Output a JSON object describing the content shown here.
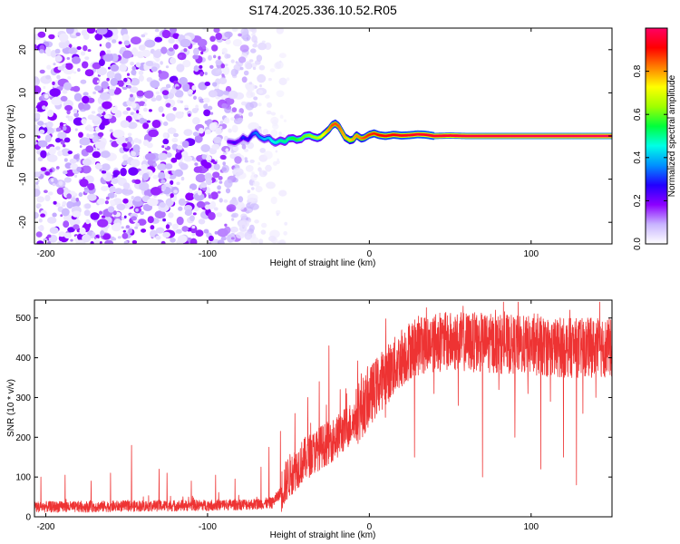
{
  "chart_data": [
    {
      "type": "heatmap",
      "title": "S174.2025.336.10.52.R05",
      "xlabel": "Height of straight line (km)",
      "ylabel": "Frequency (Hz)",
      "xlim": [
        -207,
        150
      ],
      "ylim": [
        -25,
        25
      ],
      "xticks": [
        -200,
        -100,
        0,
        100
      ],
      "yticks": [
        -20,
        -10,
        0,
        10,
        20
      ],
      "colorbar": {
        "label": "Normalized spectral amplitude",
        "range": [
          0,
          1
        ],
        "ticks": [
          0.0,
          0.2,
          0.4,
          0.6,
          0.8
        ],
        "colormap": [
          "#ffffff",
          "#c8b4ff",
          "#8c00ff",
          "#2200ff",
          "#0090ff",
          "#00ffe6",
          "#00ff3c",
          "#a0ff00",
          "#ffff00",
          "#ff8000",
          "#ff0000",
          "#ff0064"
        ]
      },
      "noise_region_x": [
        -207,
        -60
      ],
      "signal_track": {
        "x": [
          -87,
          -83,
          -80,
          -78,
          -75,
          -72,
          -70,
          -68,
          -65,
          -62,
          -60,
          -58,
          -55,
          -52,
          -50,
          -47,
          -45,
          -42,
          -40,
          -37,
          -35,
          -32,
          -30,
          -27,
          -25,
          -23,
          -21,
          -19,
          -17,
          -15,
          -12,
          -10,
          -8,
          -5,
          -3,
          0,
          3,
          6,
          10,
          15,
          20,
          25,
          30,
          35,
          40,
          50,
          60,
          80,
          100,
          120,
          150
        ],
        "y": [
          -1.3,
          -1.6,
          -1.0,
          -0.3,
          -0.9,
          0.5,
          0.8,
          -0.2,
          -0.8,
          -0.4,
          -1.2,
          -1.6,
          -1.0,
          -1.4,
          -0.6,
          -0.5,
          -0.9,
          -0.7,
          0.0,
          0.2,
          -0.2,
          -0.5,
          -0.2,
          0.8,
          1.5,
          2.5,
          2.9,
          2.3,
          1.0,
          -0.3,
          -1.0,
          -0.8,
          0.2,
          -0.6,
          -0.4,
          0.3,
          0.6,
          0.2,
          0.0,
          0.3,
          0.1,
          0.2,
          0.4,
          0.3,
          0.0,
          0.1,
          0.0,
          0.0,
          0.0,
          0.0,
          0.0
        ],
        "amplitude": [
          0.2,
          0.25,
          0.2,
          0.3,
          0.25,
          0.3,
          0.35,
          0.35,
          0.4,
          0.4,
          0.45,
          0.45,
          0.5,
          0.5,
          0.5,
          0.55,
          0.55,
          0.6,
          0.6,
          0.62,
          0.65,
          0.65,
          0.7,
          0.75,
          0.8,
          0.85,
          0.85,
          0.85,
          0.8,
          0.78,
          0.75,
          0.78,
          0.8,
          0.82,
          0.85,
          0.88,
          0.88,
          0.9,
          0.92,
          0.92,
          0.93,
          0.94,
          0.95,
          0.95,
          0.95,
          0.96,
          0.97,
          0.97,
          0.98,
          0.98,
          0.99
        ]
      }
    },
    {
      "type": "line",
      "xlabel": "Height of straight line (km)",
      "ylabel": "SNR (10 * v/v)",
      "xlim": [
        -207,
        150
      ],
      "ylim": [
        0,
        545
      ],
      "xticks": [
        -200,
        -100,
        0,
        100
      ],
      "yticks": [
        0,
        100,
        200,
        300,
        400,
        500
      ],
      "color": "#ee3333",
      "grid": false,
      "series": [
        {
          "name": "SNR",
          "x": [
            -207,
            -180,
            -150,
            -120,
            -90,
            -70,
            -60,
            -55,
            -50,
            -40,
            -30,
            -20,
            -15,
            -10,
            -5,
            0,
            5,
            10,
            15,
            20,
            25,
            30,
            40,
            50,
            60,
            80,
            100,
            120,
            150
          ],
          "y": [
            25,
            25,
            27,
            28,
            30,
            32,
            35,
            60,
            100,
            145,
            175,
            200,
            220,
            240,
            270,
            300,
            330,
            355,
            375,
            400,
            420,
            430,
            440,
            440,
            440,
            435,
            430,
            425,
            425
          ]
        }
      ],
      "spikes": {
        "x": [
          -203,
          -188,
          -172,
          -160,
          -147,
          -130,
          -125,
          -110,
          -95,
          -83,
          -67,
          -62,
          -55,
          -46,
          -38,
          -31,
          -25,
          -18,
          -14,
          -5,
          20,
          32,
          44,
          58,
          66,
          78,
          92,
          104,
          118,
          124,
          137,
          144
        ],
        "y": [
          100,
          105,
          90,
          110,
          180,
          120,
          110,
          90,
          105,
          95,
          125,
          175,
          215,
          260,
          300,
          340,
          430,
          320,
          310,
          360,
          470,
          500,
          500,
          530,
          500,
          520,
          540,
          510,
          500,
          520,
          500,
          490
        ]
      },
      "dips": {
        "x": [
          10,
          28,
          40,
          55,
          70,
          80,
          90,
          98,
          106,
          112,
          120,
          128,
          132,
          140
        ],
        "y": [
          250,
          150,
          310,
          280,
          100,
          320,
          200,
          310,
          120,
          290,
          150,
          80,
          260,
          300
        ]
      }
    }
  ]
}
